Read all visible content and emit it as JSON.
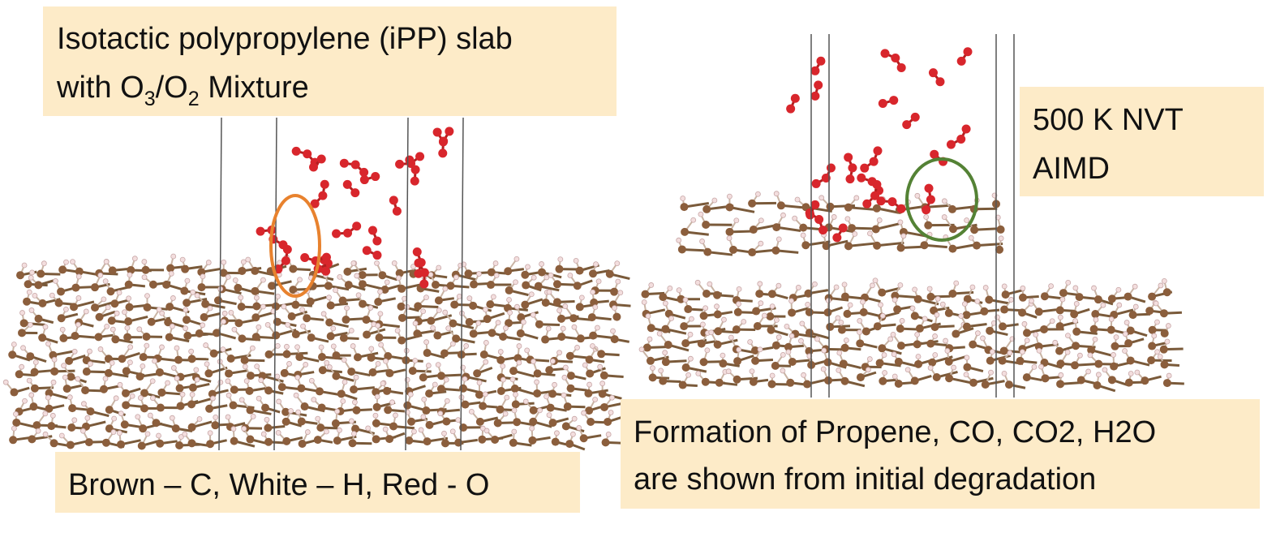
{
  "top_left_box": {
    "line1": "Isotactic polypropylene (iPP) slab",
    "line2": {
      "text1": "with O",
      "sub1": "3",
      "text2": "/O",
      "sub2": "2",
      "text3": " Mixture"
    }
  },
  "right_box": {
    "lines": [
      "500 K NVT",
      "AIMD"
    ]
  },
  "bottom_left_box": {
    "text": "Brown – C, White – H, Red - O"
  },
  "bottom_right_box": {
    "lines": [
      "Formation of Propene, CO, CO2, H2O",
      "are shown from initial degradation"
    ]
  }
}
